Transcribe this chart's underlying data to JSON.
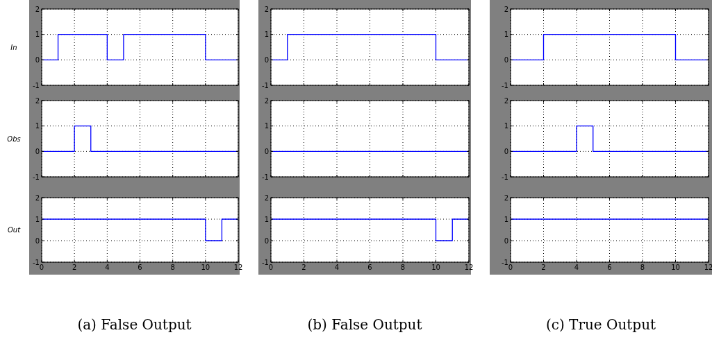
{
  "chart_data": [
    {
      "type": "step",
      "ylabel": "In",
      "x": [
        0,
        1,
        4,
        5,
        10,
        12
      ],
      "series": [
        {
          "color": "#0000ff",
          "values": [
            0,
            1,
            0,
            1,
            0,
            0
          ]
        }
      ],
      "xlim": [
        0,
        12
      ],
      "xticks": [
        0,
        2,
        4,
        6,
        8,
        10,
        12
      ],
      "ylim": [
        -1,
        2
      ],
      "yticks": [
        -1,
        0,
        1,
        2
      ],
      "grid": true,
      "tick_labels": "y"
    },
    {
      "type": "step",
      "ylabel": "Obs",
      "x": [
        0,
        2,
        3,
        12
      ],
      "series": [
        {
          "color": "#0000ff",
          "values": [
            0,
            1,
            0,
            0
          ]
        }
      ],
      "xlim": [
        0,
        12
      ],
      "xticks": [
        0,
        2,
        4,
        6,
        8,
        10,
        12
      ],
      "ylim": [
        -1,
        2
      ],
      "yticks": [
        -1,
        0,
        1,
        2
      ],
      "grid": true,
      "tick_labels": "y"
    },
    {
      "type": "step",
      "ylabel": "Out",
      "annotations": [
        "(a) False Output"
      ],
      "x": [
        0,
        10,
        11,
        12
      ],
      "series": [
        {
          "color": "#0000ff",
          "values": [
            1,
            0,
            1,
            1
          ]
        }
      ],
      "xlim": [
        0,
        12
      ],
      "xticks": [
        0,
        2,
        4,
        6,
        8,
        10,
        12
      ],
      "ylim": [
        -1,
        2
      ],
      "yticks": [
        -1,
        0,
        1,
        2
      ],
      "grid": true
    },
    {
      "type": "step",
      "x": [
        0,
        1,
        10,
        12
      ],
      "series": [
        {
          "color": "#0000ff",
          "values": [
            0,
            1,
            0,
            0
          ]
        }
      ],
      "xlim": [
        0,
        12
      ],
      "xticks": [
        0,
        2,
        4,
        6,
        8,
        10,
        12
      ],
      "ylim": [
        -1,
        2
      ],
      "yticks": [
        -1,
        0,
        1,
        2
      ],
      "grid": true,
      "tick_labels": "y"
    },
    {
      "type": "step",
      "x": [
        0,
        12
      ],
      "series": [
        {
          "color": "#0000ff",
          "values": [
            0,
            0
          ]
        }
      ],
      "xlim": [
        0,
        12
      ],
      "xticks": [
        0,
        2,
        4,
        6,
        8,
        10,
        12
      ],
      "ylim": [
        -1,
        2
      ],
      "yticks": [
        -1,
        0,
        1,
        2
      ],
      "grid": true,
      "tick_labels": "y"
    },
    {
      "type": "step",
      "annotations": [
        "(b) False Output"
      ],
      "x": [
        0,
        10,
        11,
        12
      ],
      "series": [
        {
          "color": "#0000ff",
          "values": [
            1,
            0,
            1,
            1
          ]
        }
      ],
      "xlim": [
        0,
        12
      ],
      "xticks": [
        0,
        2,
        4,
        6,
        8,
        10,
        12
      ],
      "ylim": [
        -1,
        2
      ],
      "yticks": [
        -1,
        0,
        1,
        2
      ],
      "grid": true
    },
    {
      "type": "step",
      "x": [
        0,
        2,
        10,
        12
      ],
      "series": [
        {
          "color": "#0000ff",
          "values": [
            0,
            1,
            0,
            0
          ]
        }
      ],
      "xlim": [
        0,
        12
      ],
      "xticks": [
        0,
        2,
        4,
        6,
        8,
        10,
        12
      ],
      "ylim": [
        -1,
        2
      ],
      "yticks": [
        -1,
        0,
        1,
        2
      ],
      "grid": true,
      "tick_labels": "y"
    },
    {
      "type": "step",
      "x": [
        0,
        4,
        5,
        12
      ],
      "series": [
        {
          "color": "#0000ff",
          "values": [
            0,
            1,
            0,
            0
          ]
        }
      ],
      "xlim": [
        0,
        12
      ],
      "xticks": [
        0,
        2,
        4,
        6,
        8,
        10,
        12
      ],
      "ylim": [
        -1,
        2
      ],
      "yticks": [
        -1,
        0,
        1,
        2
      ],
      "grid": true,
      "tick_labels": "y"
    },
    {
      "type": "step",
      "annotations": [
        "(c) True Output"
      ],
      "x": [
        0,
        12
      ],
      "series": [
        {
          "color": "#0000ff",
          "values": [
            1,
            1
          ]
        }
      ],
      "xlim": [
        0,
        12
      ],
      "xticks": [
        0,
        2,
        4,
        6,
        8,
        10,
        12
      ],
      "ylim": [
        -1,
        2
      ],
      "yticks": [
        -1,
        0,
        1,
        2
      ],
      "grid": true
    }
  ]
}
